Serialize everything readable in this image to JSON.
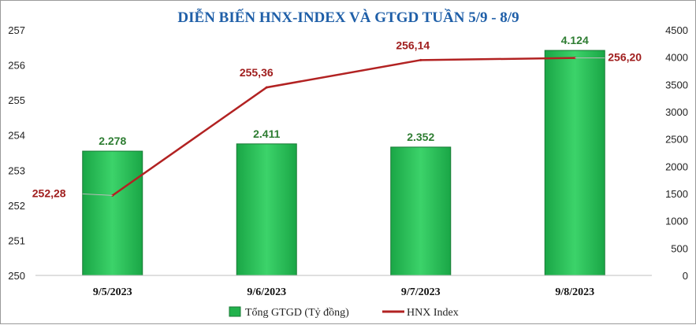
{
  "chart_data": {
    "type": "bar",
    "title": "DIỄN BIẾN HNX-INDEX VÀ GTGD TUẦN 5/9 - 8/9",
    "categories": [
      "9/5/2023",
      "9/6/2023",
      "9/7/2023",
      "9/8/2023"
    ],
    "series": [
      {
        "name": "Tổng GTGD (Tỷ đồng)",
        "type": "bar",
        "axis": "right",
        "values": [
          2278,
          2411,
          2352,
          4124
        ],
        "labels": [
          "2.278",
          "2.411",
          "2.352",
          "4.124"
        ],
        "color": "#22b24c"
      },
      {
        "name": "HNX Index",
        "type": "line",
        "axis": "left",
        "values": [
          252.28,
          255.36,
          256.14,
          256.2
        ],
        "labels": [
          "252,28",
          "255,36",
          "256,14",
          "256,20"
        ],
        "color": "#b22222"
      }
    ],
    "y_left": {
      "range": [
        250,
        257
      ],
      "ticks": [
        "250",
        "251",
        "252",
        "253",
        "254",
        "255",
        "256",
        "257"
      ]
    },
    "y_right": {
      "range": [
        0,
        4500
      ],
      "ticks": [
        "0",
        "500",
        "1000",
        "1500",
        "2000",
        "2500",
        "3000",
        "3500",
        "4000",
        "4500"
      ]
    },
    "grid": false,
    "legend_position": "bottom"
  }
}
